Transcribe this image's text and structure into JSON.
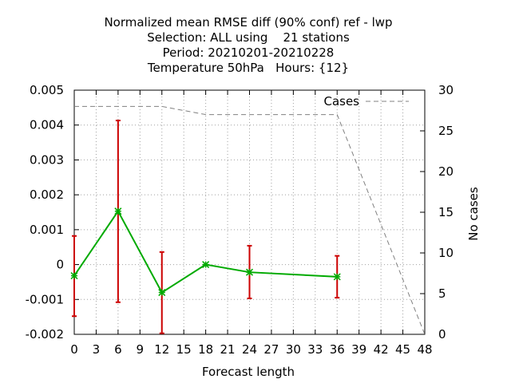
{
  "chart_data": {
    "type": "line",
    "title_lines": [
      "Normalized mean RMSE diff (90% conf) ref - lwp",
      "Selection: ALL using    21 stations",
      "Period: 20210201-20210228",
      "Temperature 50hPa   Hours: {12}"
    ],
    "xlabel": "Forecast length",
    "ylabel": "",
    "y2label": "No cases",
    "xlim": [
      0,
      48
    ],
    "ylim": [
      -0.002,
      0.005
    ],
    "y2lim": [
      0,
      30
    ],
    "x_ticks": [
      0,
      3,
      6,
      9,
      12,
      15,
      18,
      21,
      24,
      27,
      30,
      33,
      36,
      39,
      42,
      45,
      48
    ],
    "y_ticks": [
      -0.002,
      -0.001,
      0,
      0.001,
      0.002,
      0.003,
      0.004,
      0.005
    ],
    "y_tick_labels": [
      "-0.002",
      "-0.001",
      "0",
      "0.001",
      "0.002",
      "0.003",
      "0.004",
      "0.005"
    ],
    "y2_ticks": [
      0,
      5,
      10,
      15,
      20,
      25,
      30
    ],
    "y2_tick_labels": [
      "0",
      "5",
      "10",
      "15",
      "20",
      "25",
      "30"
    ],
    "grid": true,
    "series": [
      {
        "name": "RMSE diff",
        "color": "#00aa00",
        "marker_color": "#00aa00",
        "x": [
          0,
          6,
          12,
          18,
          24,
          36
        ],
        "y": [
          -0.00032,
          0.00153,
          -0.0008,
          0.0,
          -0.00022,
          -0.00035
        ]
      }
    ],
    "error_bars": {
      "color": "#cc0000",
      "x": [
        0,
        6,
        12,
        18,
        24,
        36
      ],
      "low": [
        -0.00148,
        -0.00108,
        -0.00197,
        0.0,
        -0.00097,
        -0.00095
      ],
      "high": [
        0.00082,
        0.00413,
        0.00036,
        0.0,
        0.00054,
        0.00025
      ]
    },
    "cases": {
      "name": "Cases",
      "color": "#808080",
      "axis": "y2",
      "x": [
        0,
        6,
        12,
        18,
        24,
        36,
        48
      ],
      "y": [
        28,
        28,
        28,
        27,
        27,
        27,
        0
      ]
    },
    "legend": {
      "label": "Cases",
      "position": "top-right"
    }
  }
}
